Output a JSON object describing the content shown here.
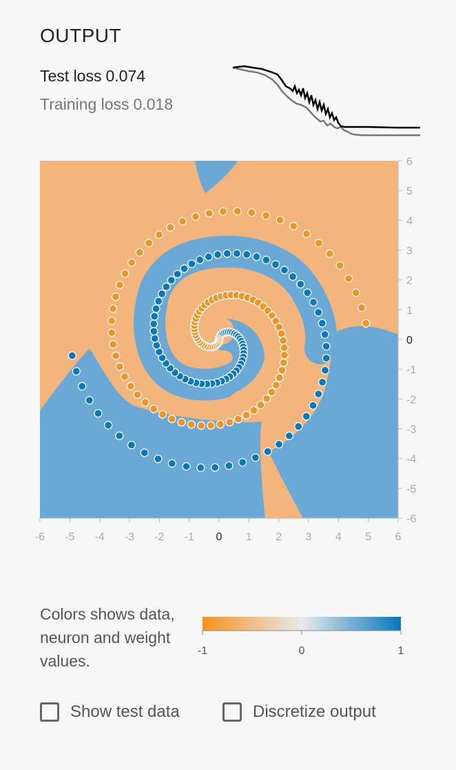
{
  "output": {
    "title": "OUTPUT",
    "test_loss_label": "Test loss",
    "test_loss_value": "0.074",
    "training_loss_label": "Training loss",
    "training_loss_value": "0.018"
  },
  "colors": {
    "orange": "#f59322",
    "blue": "#0877bd",
    "region_orange": "#f3b57c",
    "region_blue": "#6aa8d6",
    "test_curve": "#000000",
    "train_curve": "#777777"
  },
  "plot": {
    "x_ticks": [
      "-6",
      "-5",
      "-4",
      "-3",
      "-2",
      "-1",
      "0",
      "1",
      "2",
      "3",
      "4",
      "5",
      "6"
    ],
    "y_ticks": [
      "6",
      "5",
      "4",
      "3",
      "2",
      "1",
      "0",
      "-1",
      "-2",
      "-3",
      "-4",
      "-5",
      "-6"
    ],
    "xlim": [
      -6,
      6
    ],
    "ylim": [
      -6,
      6
    ]
  },
  "legend": {
    "text": "Colors shows data, neuron and weight values.",
    "ticks": [
      "-1",
      "0",
      "1"
    ]
  },
  "controls": {
    "show_test_data": "Show test data",
    "discretize_output": "Discretize output"
  }
}
